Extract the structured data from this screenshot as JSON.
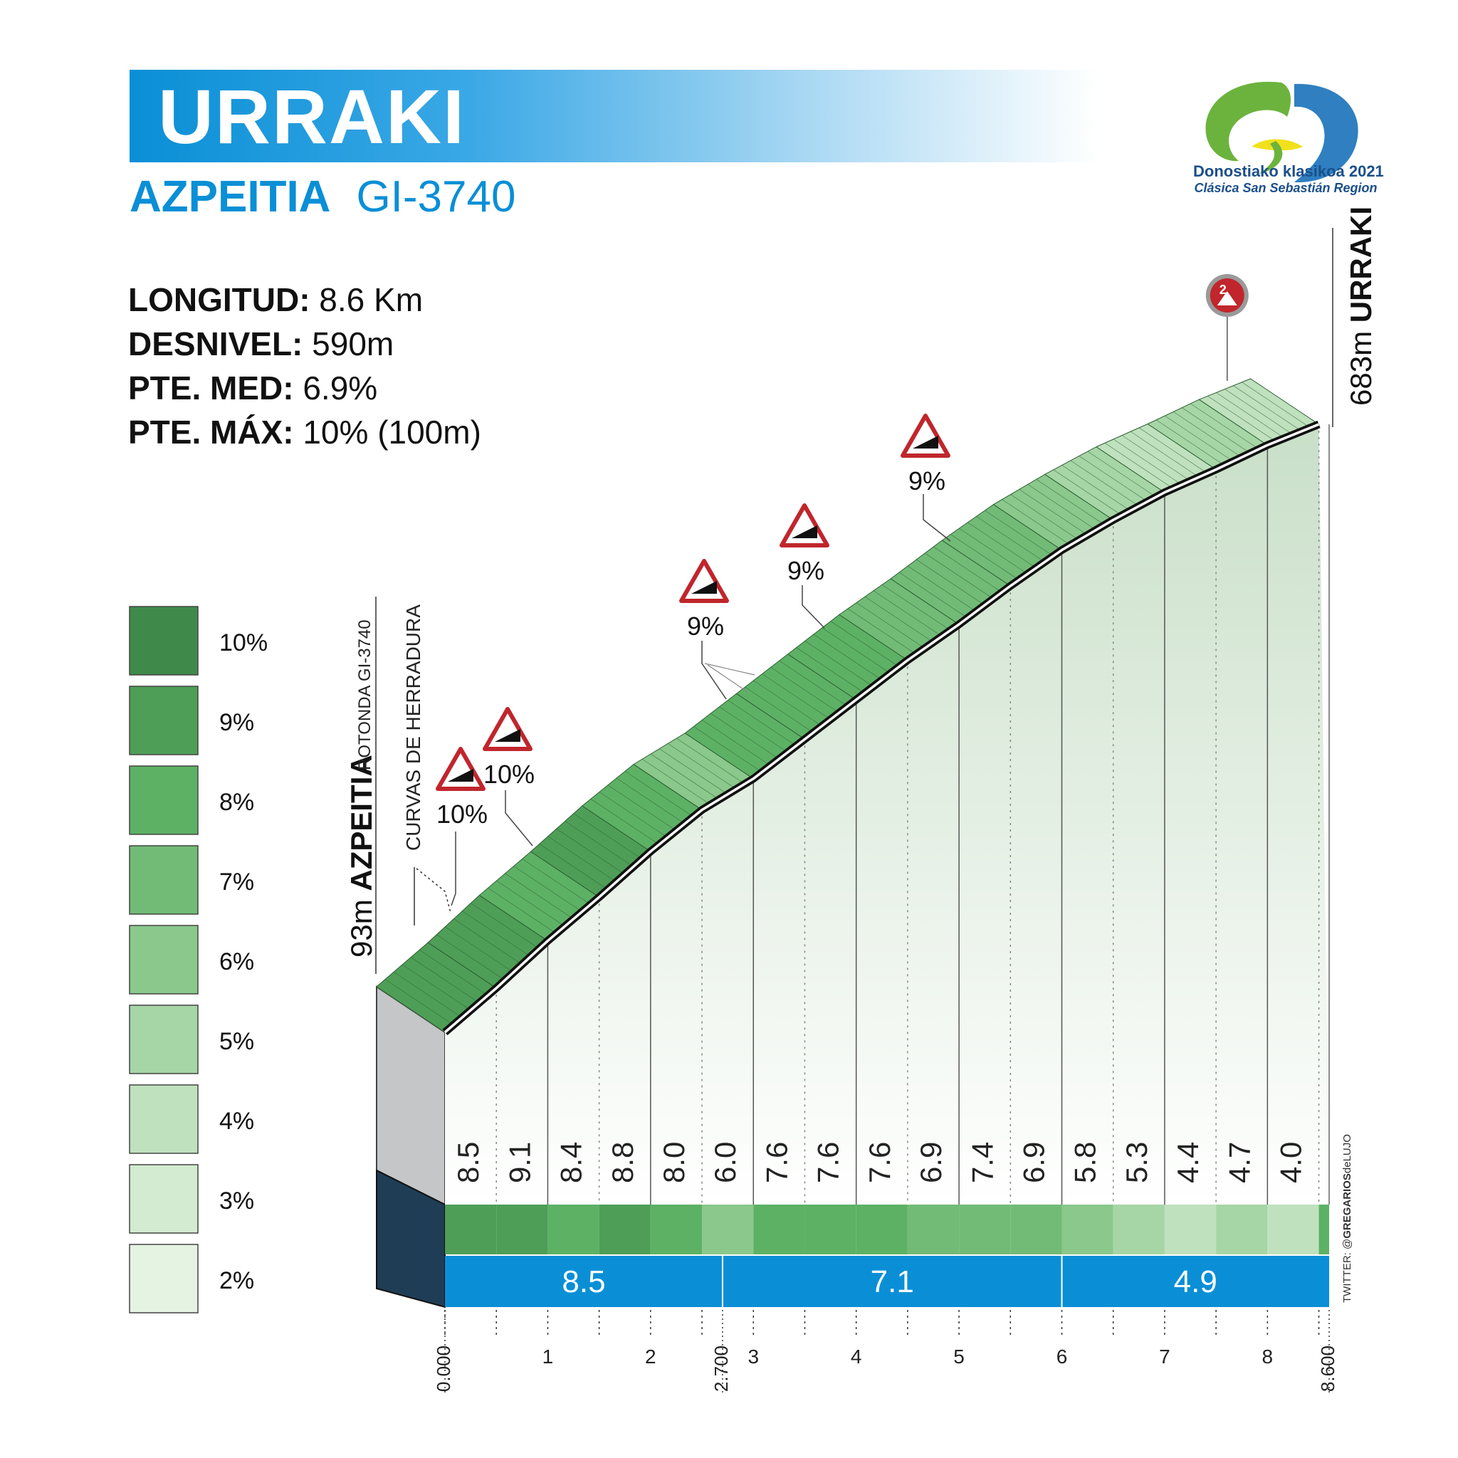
{
  "header": {
    "title": "URRAKI",
    "town": "AZPEITIA",
    "road": "GI-3740"
  },
  "stats": [
    {
      "key": "LONGITUD:",
      "value": "8.6 Km"
    },
    {
      "key": "DESNIVEL:",
      "value": "590m"
    },
    {
      "key": "PTE. MED:",
      "value": "6.9%"
    },
    {
      "key": "PTE. MÁX:",
      "value": "10% (100m)"
    }
  ],
  "logo": {
    "line1": "Donostiako klasikoa 2021",
    "line2": "Clásica San Sebastián Region"
  },
  "credit": {
    "prefix": "TWITTER: @",
    "handle": "GREGARIOS",
    "suffix": "deLUJO"
  },
  "colors": {
    "accent_blue": "#0a8fd6",
    "km_band_blue": "#0a8fd6",
    "summit_badge_red": "#c0262c",
    "grade_10": "#3f8a4a",
    "grade_9": "#4e9e57",
    "grade_8": "#5db165",
    "grade_7": "#72bb77",
    "grade_6": "#8ac88c",
    "grade_5": "#a6d5a6",
    "grade_4": "#bfe1bd",
    "grade_3": "#d3ebd1",
    "grade_2": "#e5f3e3"
  },
  "chart_data": {
    "type": "area",
    "start": {
      "label": "AZPEITIA",
      "altitude": "93m",
      "note": "ROTONDA GI-3740",
      "km": 0
    },
    "summit": {
      "label": "URRAKI",
      "altitude": "683m",
      "km": 8.6,
      "category_badge": "2"
    },
    "start_altitude_m": 93,
    "summit_altitude_m": 683,
    "length_km": 8.6,
    "xlim": [
      0,
      8.6
    ],
    "segment_width_km": 0.5,
    "segment_gradients": [
      "8.5",
      "9.1",
      "8.4",
      "8.8",
      "8.0",
      "6.0",
      "7.6",
      "7.6",
      "7.6",
      "6.9",
      "7.4",
      "6.9",
      "5.8",
      "5.3",
      "4.4",
      "4.7",
      "4.0"
    ],
    "segment_gradient_values": [
      8.5,
      9.1,
      8.4,
      8.8,
      8.0,
      6.0,
      7.6,
      7.6,
      7.6,
      6.9,
      7.4,
      6.9,
      5.8,
      5.3,
      4.4,
      4.7,
      4.0
    ],
    "sectors": [
      {
        "from_km": 0,
        "to_km": 2.7,
        "gradient": "8.5"
      },
      {
        "from_km": 2.7,
        "to_km": 6.0,
        "gradient": "7.1"
      },
      {
        "from_km": 6.0,
        "to_km": 8.6,
        "gradient": "4.9"
      }
    ],
    "x_ticks": [
      "1",
      "2",
      "3",
      "4",
      "5",
      "6",
      "7",
      "8"
    ],
    "x_tick_values": [
      1,
      2,
      3,
      4,
      5,
      6,
      7,
      8
    ],
    "special_ticks": [
      {
        "km": 0,
        "label": "0.000"
      },
      {
        "km": 2.7,
        "label": "2.700"
      },
      {
        "km": 8.6,
        "label": "8.600"
      }
    ],
    "annotations": [
      {
        "km": 0.1,
        "label": "CURVAS DE HERRADURA"
      },
      {
        "km": 0.05,
        "label": "10%"
      },
      {
        "km": 0.95,
        "label": "10%"
      },
      {
        "km": 2.75,
        "label": "9%"
      },
      {
        "km": 3.65,
        "label": "9%"
      },
      {
        "km": 4.9,
        "label": "9%"
      }
    ],
    "legend": [
      "10%",
      "9%",
      "8%",
      "7%",
      "6%",
      "5%",
      "4%",
      "3%",
      "2%"
    ],
    "legend_values": [
      10,
      9,
      8,
      7,
      6,
      5,
      4,
      3,
      2
    ]
  }
}
